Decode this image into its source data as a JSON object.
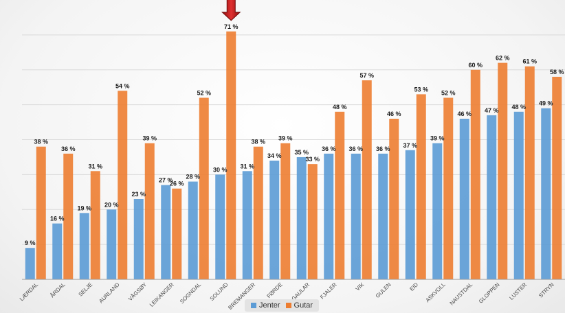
{
  "chart_data": {
    "type": "bar",
    "categories": [
      "LÆRDAL",
      "ÅRDAL",
      "SELJE",
      "AURLAND",
      "VÅGSØY",
      "LEIKANGER",
      "SOGNDAL",
      "SOLUND",
      "BREMANGER",
      "FØRDE",
      "GAULAR",
      "FJALER",
      "VIK",
      "GULEN",
      "EID",
      "ASKVOLL",
      "NAUSTDAL",
      "GLOPPEN",
      "LUSTER",
      "STRYN"
    ],
    "series": [
      {
        "name": "Jenter",
        "color": "#5b9bd5",
        "values": [
          9,
          16,
          19,
          20,
          23,
          27,
          28,
          30,
          31,
          34,
          35,
          36,
          36,
          36,
          37,
          39,
          46,
          47,
          48,
          49
        ],
        "labels": [
          "9 %",
          "16 %",
          "19 %",
          "20 %",
          "23 %",
          "27 %",
          "28 %",
          "30 %",
          "31 %",
          "34 %",
          "35 %",
          "36 %",
          "36 %",
          "36 %",
          "37 %",
          "39 %",
          "46 %",
          "47 %",
          "48 %",
          "49 %"
        ]
      },
      {
        "name": "Gutar",
        "color": "#ed7d31",
        "values": [
          38,
          36,
          31,
          54,
          39,
          26,
          52,
          71,
          38,
          39,
          33,
          48,
          57,
          46,
          53,
          52,
          60,
          62,
          61,
          58
        ],
        "labels": [
          "38 %",
          "36 %",
          "31 %",
          "54 %",
          "39 %",
          "26 %",
          "52 %",
          "71 %",
          "38 %",
          "39 %",
          "33 %",
          "48 %",
          "57 %",
          "46 %",
          "53 %",
          "52 %",
          "60 %",
          "62 %",
          "61 %",
          "58 %"
        ]
      }
    ],
    "ylim": [
      0,
      80
    ],
    "grid": true,
    "legend_position": "bottom",
    "highlight_category": "SOLUND",
    "highlight_marker": "red-down-arrow"
  }
}
